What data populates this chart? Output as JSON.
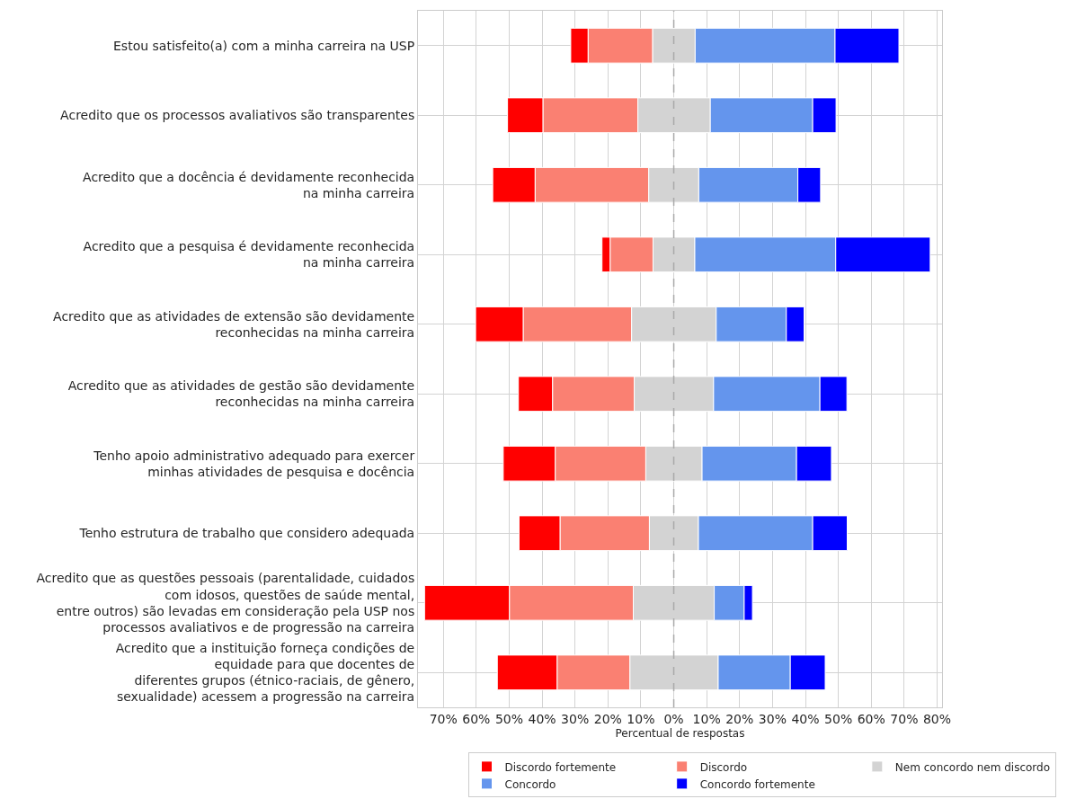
{
  "chart_data": {
    "type": "bar",
    "orientation": "horizontal",
    "xlabel": "Percentual de respostas",
    "categories": [
      "Estou satisfeito(a) com a minha carreira na USP",
      "Acredito que os processos avaliativos são transparentes",
      "Acredito que a docência é devidamente reconhecida\nna minha carreira",
      "Acredito que a pesquisa é devidamente reconhecida\nna minha carreira",
      "Acredito que as atividades de extensão são devidamente\nreconhecidas na minha carreira",
      "Acredito que as atividades de gestão são devidamente\nreconhecidas na minha carreira",
      "Tenho apoio administrativo adequado para exercer\nminhas atividades de pesquisa e docência",
      "Tenho estrutura de trabalho que considero adequada",
      "Acredito que as questões pessoais (parentalidade, cuidados\ncom idosos, questões de saúde mental,\nentre outros) são levadas em consideração pela USP nos\nprocessos avaliativos e de progressão na carreira",
      "Acredito que a instituição forneça condições de\nequidade para que docentes de\ndiferentes grupos (étnico-raciais, de gênero,\nsexualidade) acessem a progressão na carreira"
    ],
    "series": [
      {
        "name": "Discordo fortemente",
        "color": "#ff0000",
        "base": [
          -31.3,
          -50.5,
          -55.0,
          -21.8,
          -60.2,
          -47.2,
          -51.8,
          -47.0,
          -75.7,
          -53.6
        ],
        "values": [
          5.3,
          10.8,
          12.9,
          2.5,
          14.5,
          10.4,
          15.8,
          12.5,
          25.8,
          18.2
        ]
      },
      {
        "name": "Discordo",
        "color": "#fa8072",
        "base": [
          -26.0,
          -39.7,
          -42.1,
          -19.3,
          -45.7,
          -36.8,
          -36.0,
          -34.5,
          -49.9,
          -35.4
        ],
        "values": [
          19.6,
          28.8,
          34.5,
          13.0,
          32.9,
          24.8,
          27.5,
          27.1,
          37.6,
          22.1
        ]
      },
      {
        "name": "Nem concordo nem discordo",
        "color": "#d3d3d3",
        "base": [
          -6.4,
          -10.9,
          -7.6,
          -6.3,
          -12.8,
          -12.0,
          -8.5,
          -7.4,
          -12.3,
          -13.3
        ],
        "values": [
          12.9,
          22.0,
          15.2,
          12.7,
          25.7,
          24.1,
          17.1,
          14.9,
          24.6,
          26.8
        ]
      },
      {
        "name": "Concordo",
        "color": "#6495ed",
        "base": [
          6.5,
          11.1,
          7.6,
          6.4,
          12.9,
          12.1,
          8.6,
          7.5,
          12.3,
          13.5
        ],
        "values": [
          42.5,
          31.1,
          30.1,
          42.8,
          21.3,
          32.3,
          28.7,
          34.7,
          9.1,
          21.9
        ]
      },
      {
        "name": "Concordo fortemente",
        "color": "#0000ff",
        "base": [
          49.0,
          42.2,
          37.7,
          49.2,
          34.2,
          44.4,
          37.3,
          42.2,
          21.4,
          35.4
        ],
        "values": [
          19.4,
          7.1,
          6.9,
          28.7,
          5.4,
          8.2,
          10.6,
          10.5,
          2.5,
          10.6
        ]
      }
    ],
    "xlim": [
      -77.7,
      81.5
    ],
    "xticks": [
      {
        "value": -70,
        "label": "70%"
      },
      {
        "value": -60,
        "label": "60%"
      },
      {
        "value": -50,
        "label": "50%"
      },
      {
        "value": -40,
        "label": "40%"
      },
      {
        "value": -30,
        "label": "30%"
      },
      {
        "value": -20,
        "label": "20%"
      },
      {
        "value": -10,
        "label": "10%"
      },
      {
        "value": 0,
        "label": "0%"
      },
      {
        "value": 10,
        "label": "10%"
      },
      {
        "value": 20,
        "label": "20%"
      },
      {
        "value": 30,
        "label": "30%"
      },
      {
        "value": 40,
        "label": "40%"
      },
      {
        "value": 50,
        "label": "50%"
      },
      {
        "value": 60,
        "label": "60%"
      },
      {
        "value": 70,
        "label": "70%"
      },
      {
        "value": 80,
        "label": "80%"
      }
    ],
    "ref_lines": [
      {
        "axis": "x",
        "value": 0,
        "color": "#a9a9a9",
        "line_style": "dashed"
      }
    ],
    "grid": true,
    "legend": "bottom"
  }
}
